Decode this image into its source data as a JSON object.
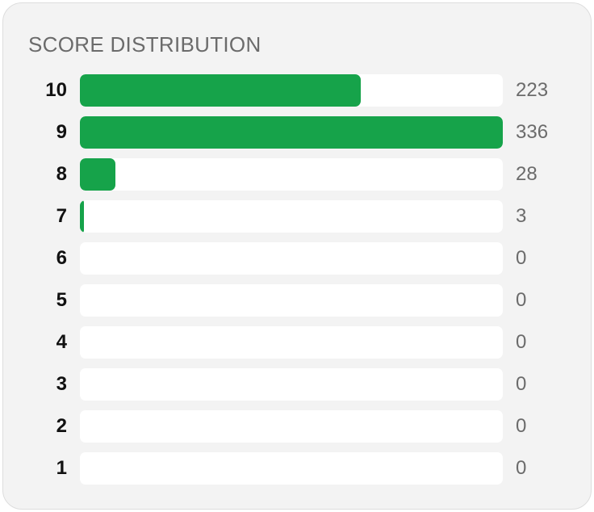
{
  "title": "SCORE DISTRIBUTION",
  "colors": {
    "bar_fill": "#16a34a",
    "track": "#ffffff",
    "card_background": "#f3f3f3"
  },
  "chart_data": {
    "type": "bar",
    "orientation": "horizontal",
    "title": "SCORE DISTRIBUTION",
    "categories": [
      "10",
      "9",
      "8",
      "7",
      "6",
      "5",
      "4",
      "3",
      "2",
      "1"
    ],
    "values": [
      223,
      336,
      28,
      3,
      0,
      0,
      0,
      0,
      0,
      0
    ],
    "value_labels": [
      "223",
      "336",
      "28",
      "3",
      "0",
      "0",
      "0",
      "0",
      "0",
      "0"
    ],
    "xlim": [
      0,
      336
    ],
    "grid": false,
    "legend": "none"
  }
}
